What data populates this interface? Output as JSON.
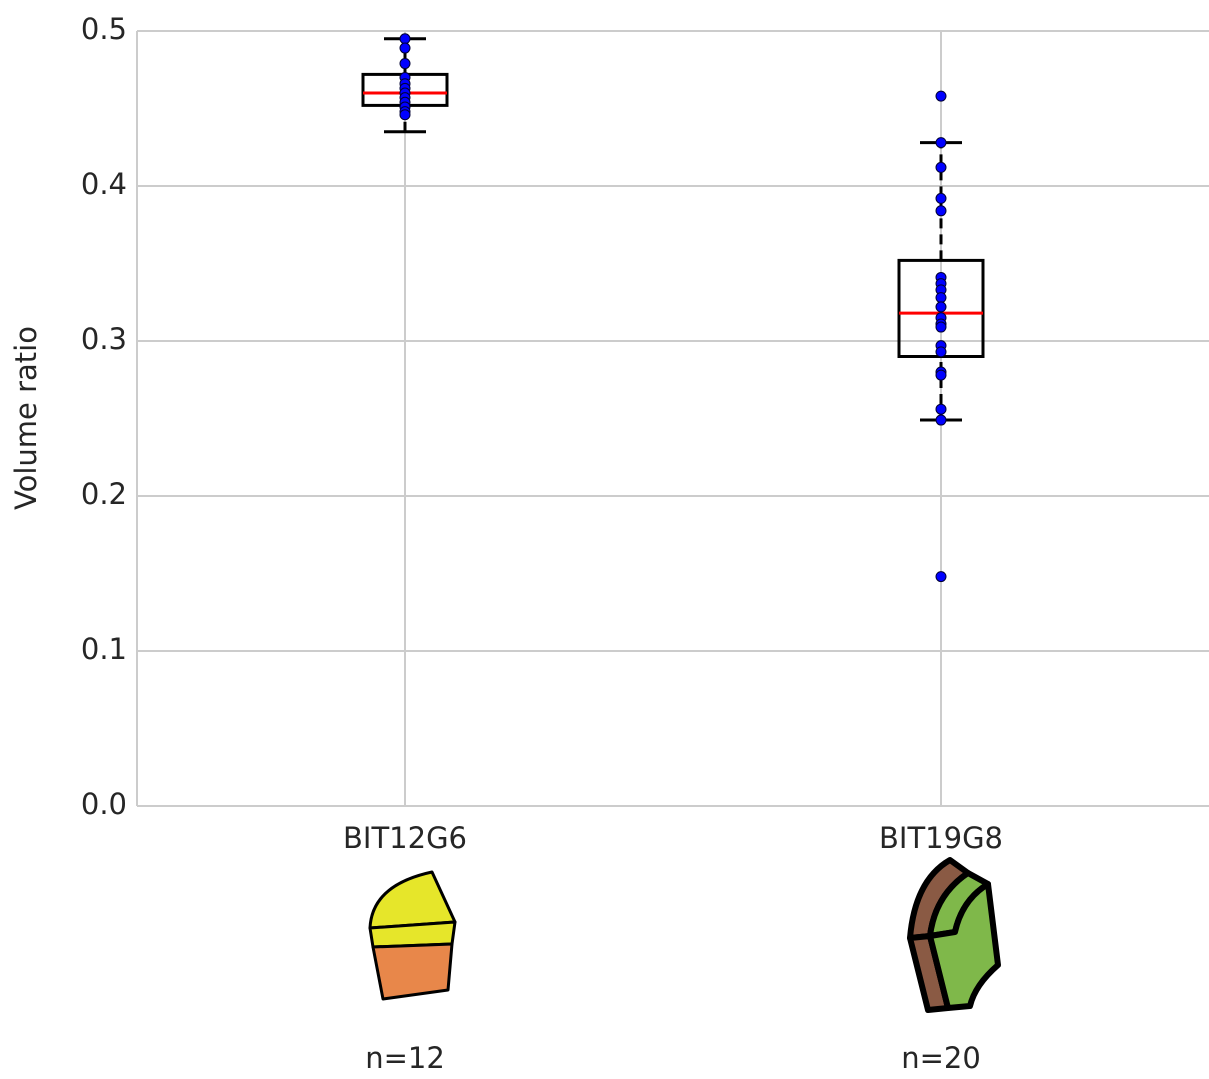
{
  "chart_data": {
    "type": "box",
    "ylabel": "Volume ratio",
    "categories": [
      "BIT12G6",
      "BIT19G8"
    ],
    "annotations": [
      "n=12",
      "n=20"
    ],
    "boxes": [
      {
        "whislo": 0.435,
        "q1": 0.452,
        "med": 0.46,
        "q3": 0.472,
        "whishi": 0.495
      },
      {
        "whislo": 0.249,
        "q1": 0.29,
        "med": 0.318,
        "q3": 0.352,
        "whishi": 0.428
      }
    ],
    "points": [
      [
        0.495,
        0.489,
        0.479,
        0.47,
        0.466,
        0.463,
        0.46,
        0.457,
        0.454,
        0.451,
        0.448,
        0.446
      ],
      [
        0.458,
        0.428,
        0.412,
        0.392,
        0.384,
        0.341,
        0.337,
        0.333,
        0.328,
        0.322,
        0.315,
        0.311,
        0.309,
        0.297,
        0.293,
        0.28,
        0.278,
        0.256,
        0.249,
        0.148
      ]
    ],
    "box_color": "#000000",
    "median_color": "#ff0000",
    "point_color": "#0000ff",
    "ylim": [
      0,
      0.5
    ],
    "yticks": [
      {
        "value": 0,
        "label": "0.0"
      },
      0.1,
      0.2,
      0.3,
      0.4,
      0.5
    ],
    "grid": true
  }
}
